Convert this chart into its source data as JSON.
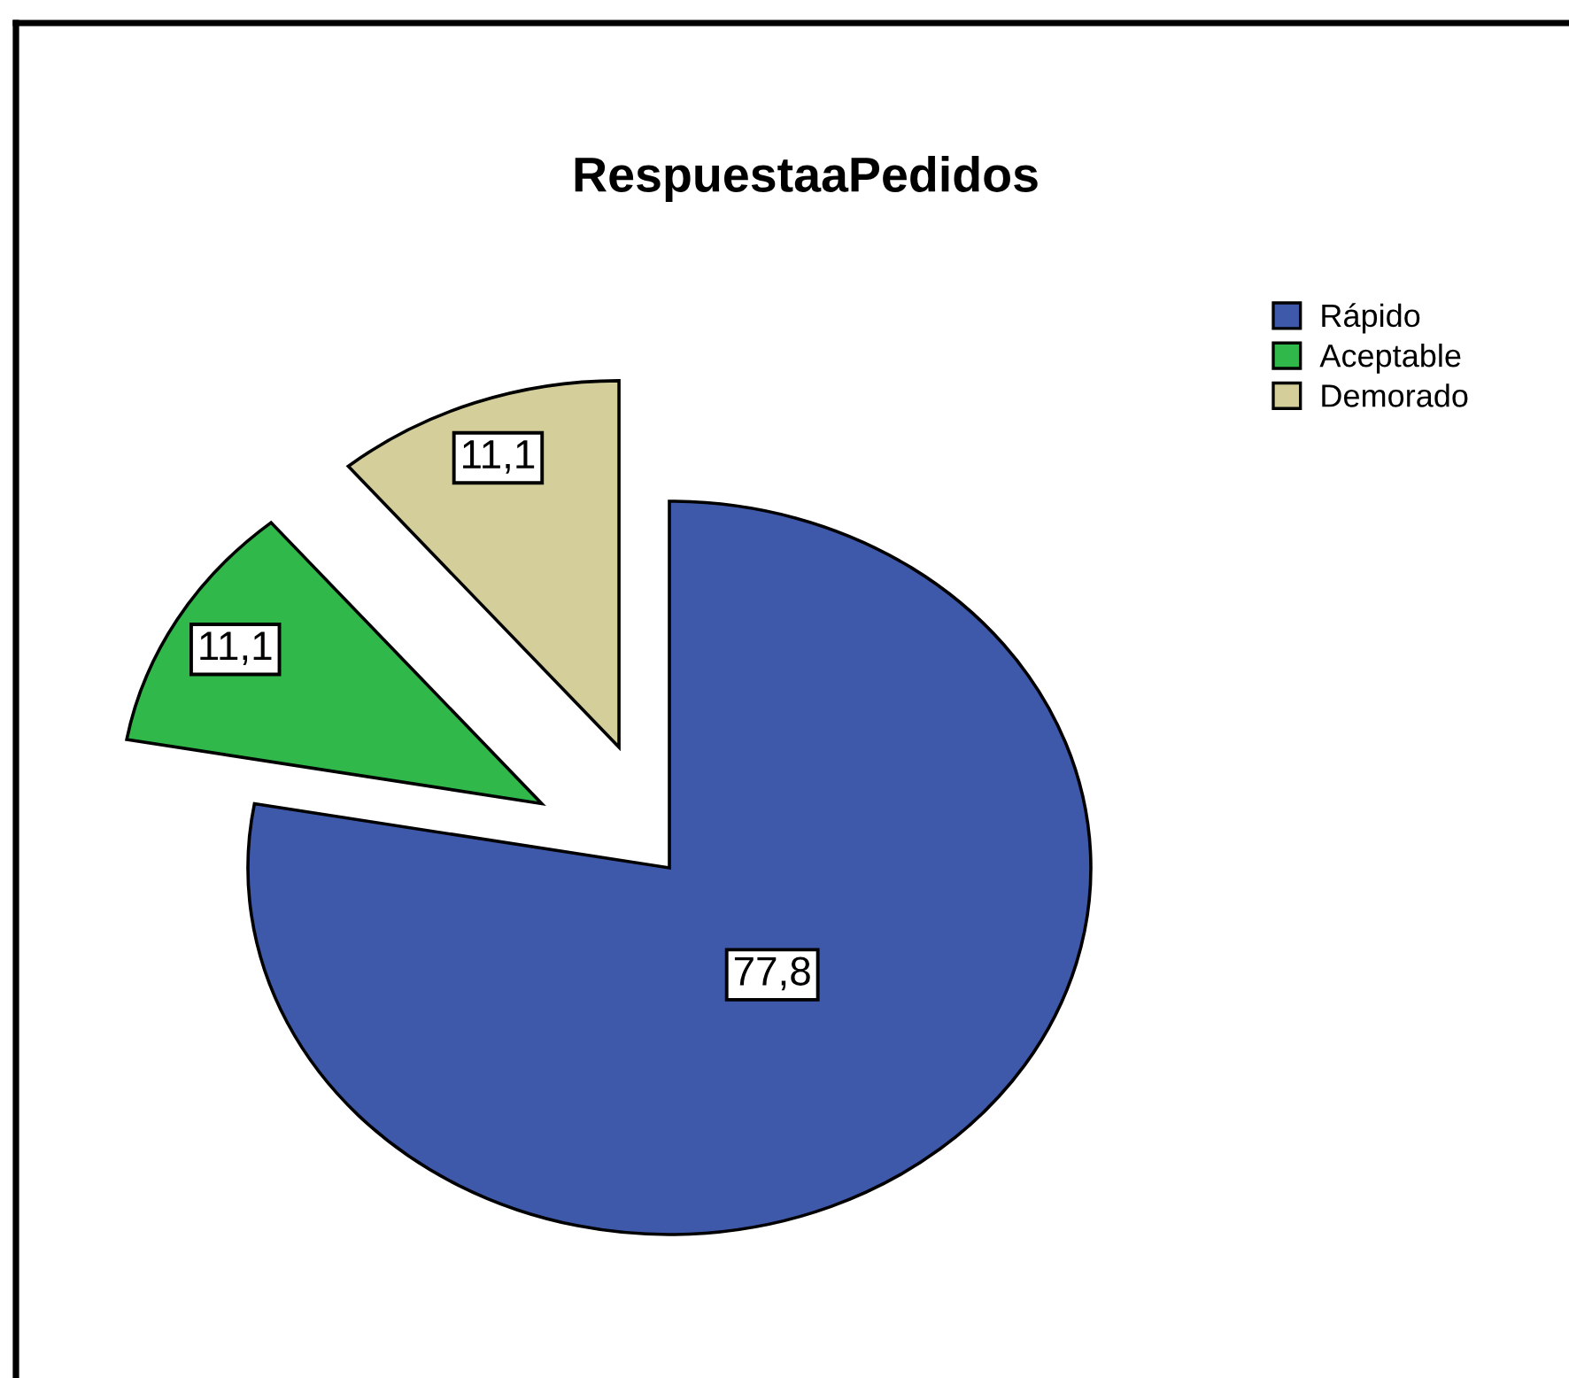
{
  "chart_data": {
    "type": "pie",
    "title": "RespuestaaPedidos",
    "categories": [
      "Rápido",
      "Aceptable",
      "Demorado"
    ],
    "values": [
      77.8,
      11.1,
      11.1
    ],
    "colors": [
      "#3f59aa",
      "#30b84a",
      "#d3ce9a"
    ],
    "value_labels": [
      "77,8",
      "11,1",
      "11,1"
    ],
    "legend": "top right"
  }
}
